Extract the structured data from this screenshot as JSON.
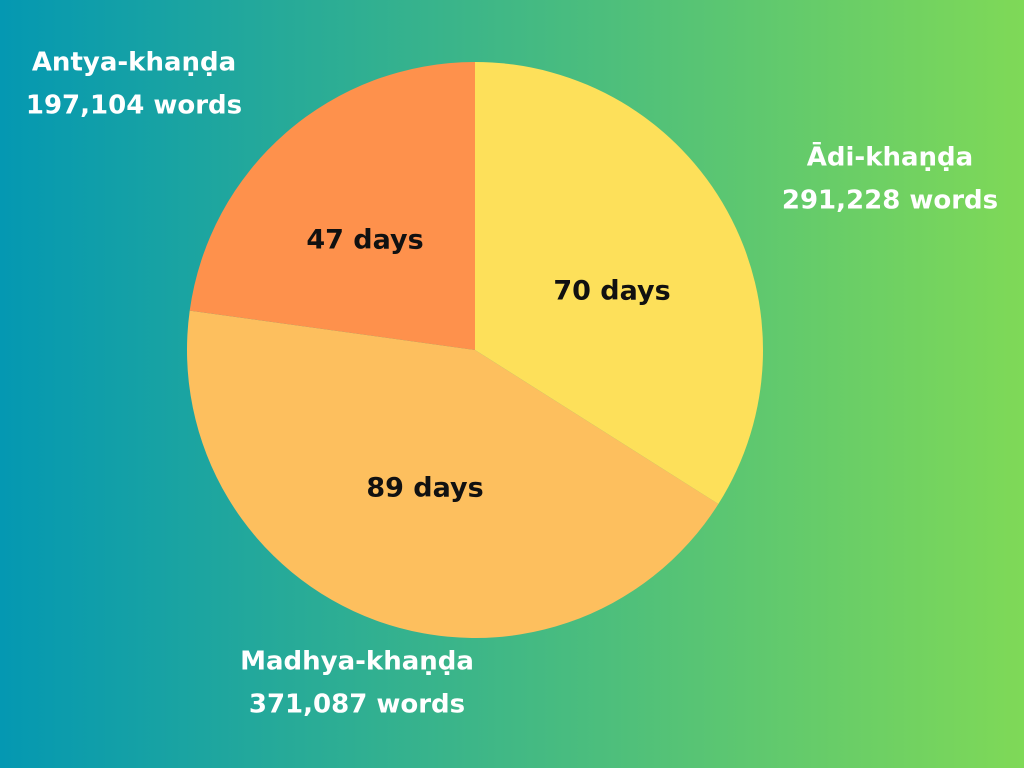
{
  "chart_data": {
    "type": "pie",
    "categories": [
      "Ādi-khaṇḍa",
      "Madhya-khaṇḍa",
      "Antya-khaṇḍa"
    ],
    "word_counts": [
      "291,228 words",
      "371,087 words",
      "197,104 words"
    ],
    "values": [
      70,
      89,
      47
    ],
    "value_labels": [
      "70 days",
      "89 days",
      "47 days"
    ],
    "colors": [
      "#fde05a",
      "#fdbf5e",
      "#fe914c"
    ]
  }
}
